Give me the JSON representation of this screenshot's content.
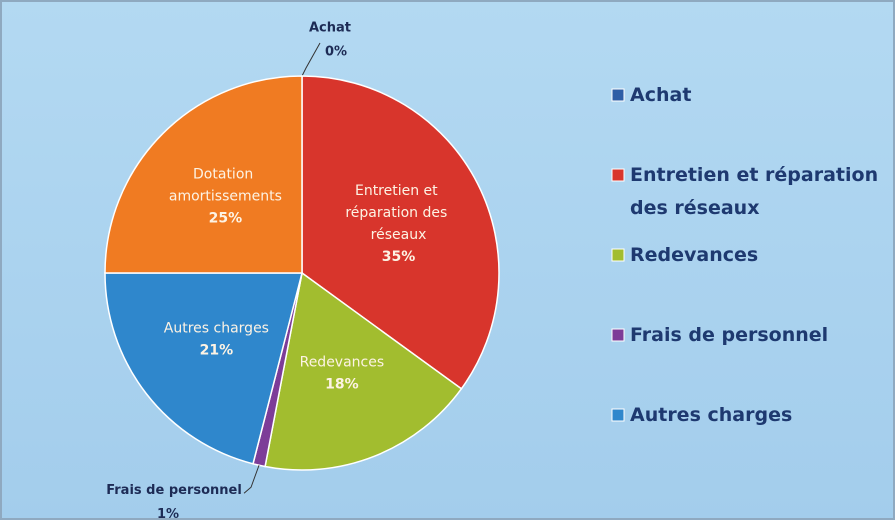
{
  "chart_data": {
    "type": "pie",
    "categories": [
      "Achat",
      "Entretien et réparation des réseaux",
      "Redevances",
      "Frais de personnel",
      "Autres charges",
      "Dotation amortissements"
    ],
    "values": [
      0,
      35,
      18,
      1,
      21,
      25
    ],
    "value_labels": [
      "0%",
      "35%",
      "18%",
      "1%",
      "21%",
      "25%"
    ],
    "colors": [
      "#2e5ea6",
      "#d8352c",
      "#a2bd2f",
      "#7d3c98",
      "#2f87cc",
      "#f07b22"
    ],
    "legend": [
      "Achat",
      "Entretien et réparation des réseaux",
      "Redevances",
      "Frais de personnel",
      "Autres charges"
    ],
    "legend_position": "right"
  }
}
